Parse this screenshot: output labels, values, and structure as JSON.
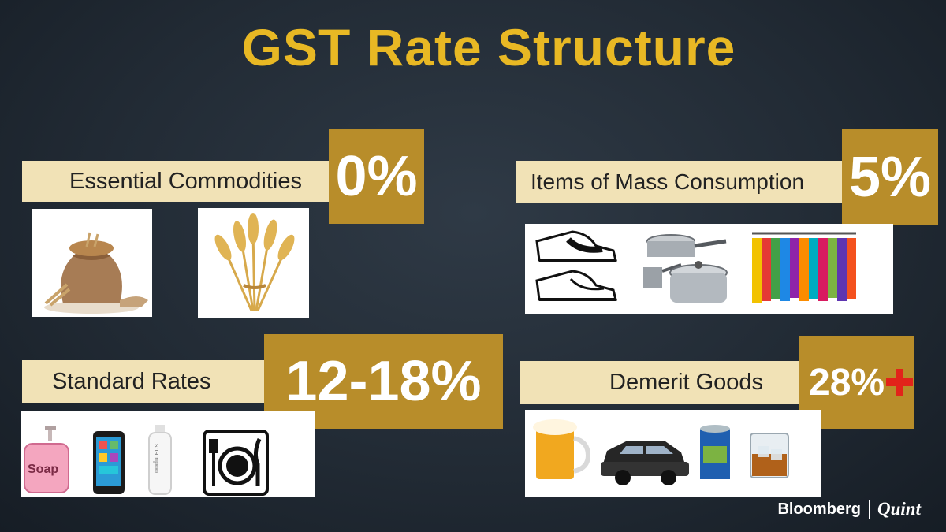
{
  "title": "GST Rate Structure",
  "sections": {
    "essential": {
      "label": "Essential Commodities",
      "rate": "0%",
      "icons": [
        "grain-sack-icon",
        "wheat-icon"
      ]
    },
    "mass": {
      "label": "Items of Mass Consumption",
      "rate": "5%",
      "icons": [
        "sneakers-icon",
        "cookware-icon",
        "clothes-rack-icon"
      ]
    },
    "standard": {
      "label": "Standard Rates",
      "rate": "12-18%",
      "icons": [
        "soap-dispenser-icon",
        "mobile-phone-icon",
        "shampoo-bottle-icon",
        "dining-icon"
      ]
    },
    "demerit": {
      "label": "Demerit Goods",
      "rate": "28%",
      "icons": [
        "beer-mug-icon",
        "suv-car-icon",
        "paint-tin-icon",
        "whisky-glass-icon"
      ]
    }
  },
  "labels": {
    "soap": "Soap",
    "shampoo": "shampoo"
  },
  "brand": {
    "name": "Bloomberg",
    "partner": "Quint"
  },
  "colors": {
    "title": "#e8b824",
    "label_bg": "#f1e2b6",
    "rate_bg": "#b88d2a",
    "cess_plus": "#e2231a"
  }
}
